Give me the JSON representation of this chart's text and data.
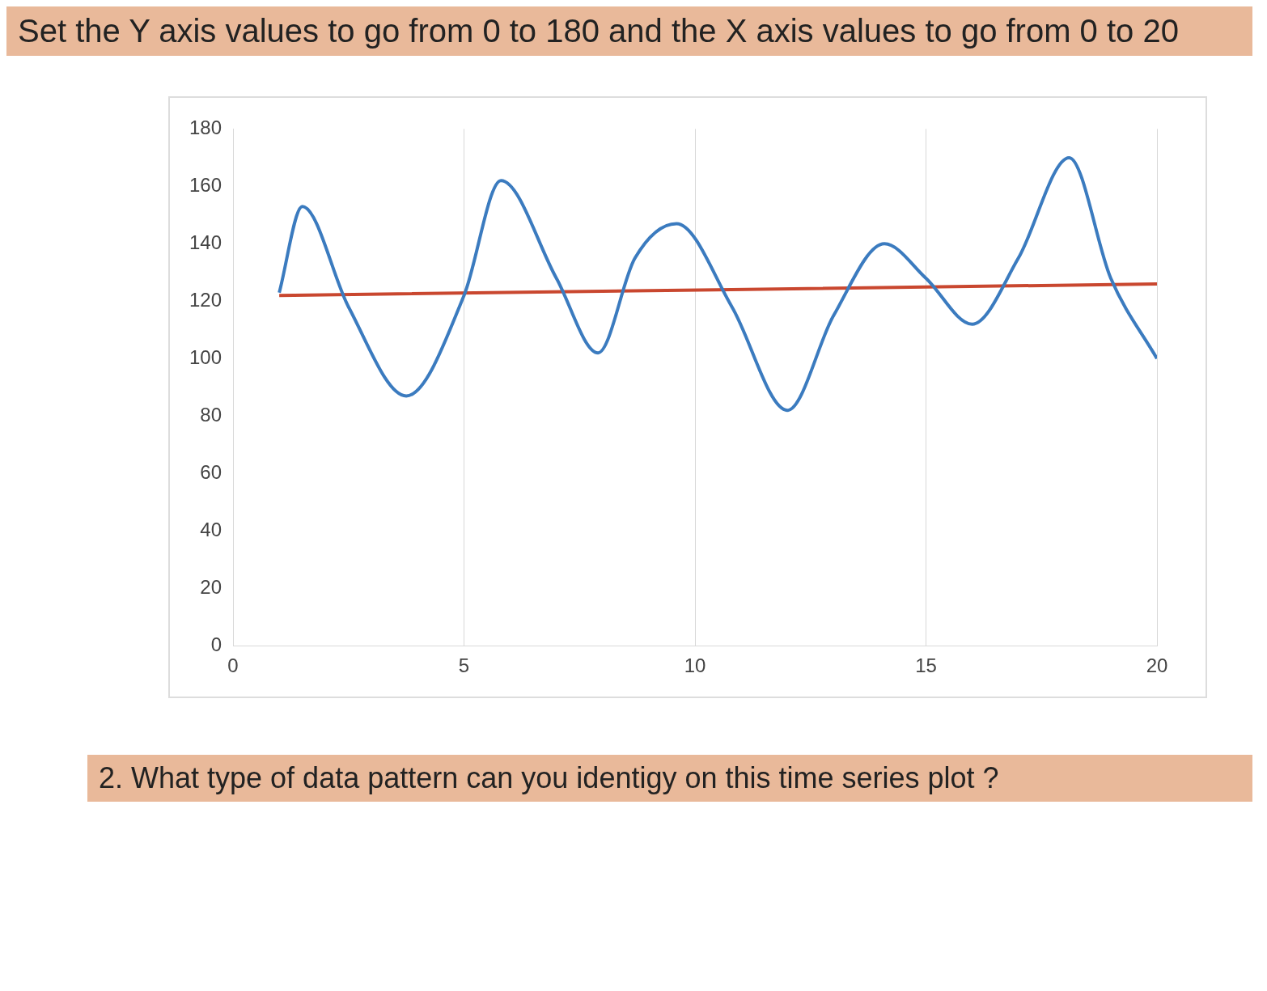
{
  "chart_data": {
    "type": "line",
    "title": "Set the Y axis values to go from 0 to 180 and the X axis values to go from 0 to 20",
    "annotations": [
      "2. What type of data pattern can you identigy on this time series plot ?"
    ],
    "series": [
      {
        "color": "#3b7bbf",
        "x": [
          1,
          1.5,
          2.5,
          3.75,
          5,
          5.8,
          7,
          7.9,
          8.7,
          9.6,
          10.8,
          12,
          13,
          14.1,
          15,
          16,
          17,
          18.1,
          19,
          20
        ],
        "values": [
          123,
          153,
          118,
          87,
          122,
          162,
          128,
          102,
          135,
          147,
          118,
          82,
          115,
          140,
          128,
          112,
          135,
          170,
          128,
          100
        ]
      },
      {
        "type": "line",
        "color": "#c9472f",
        "x": [
          1,
          20
        ],
        "values": [
          122,
          126
        ]
      }
    ],
    "xlim": [
      0,
      20
    ],
    "xticks": [
      0,
      5,
      10,
      15,
      20
    ],
    "ylim": [
      0,
      180
    ],
    "yticks": [
      0,
      20,
      40,
      60,
      80,
      100,
      120,
      140,
      160,
      180
    ],
    "grid": "x",
    "legend": false,
    "marker": "none",
    "line_style": "solid"
  }
}
